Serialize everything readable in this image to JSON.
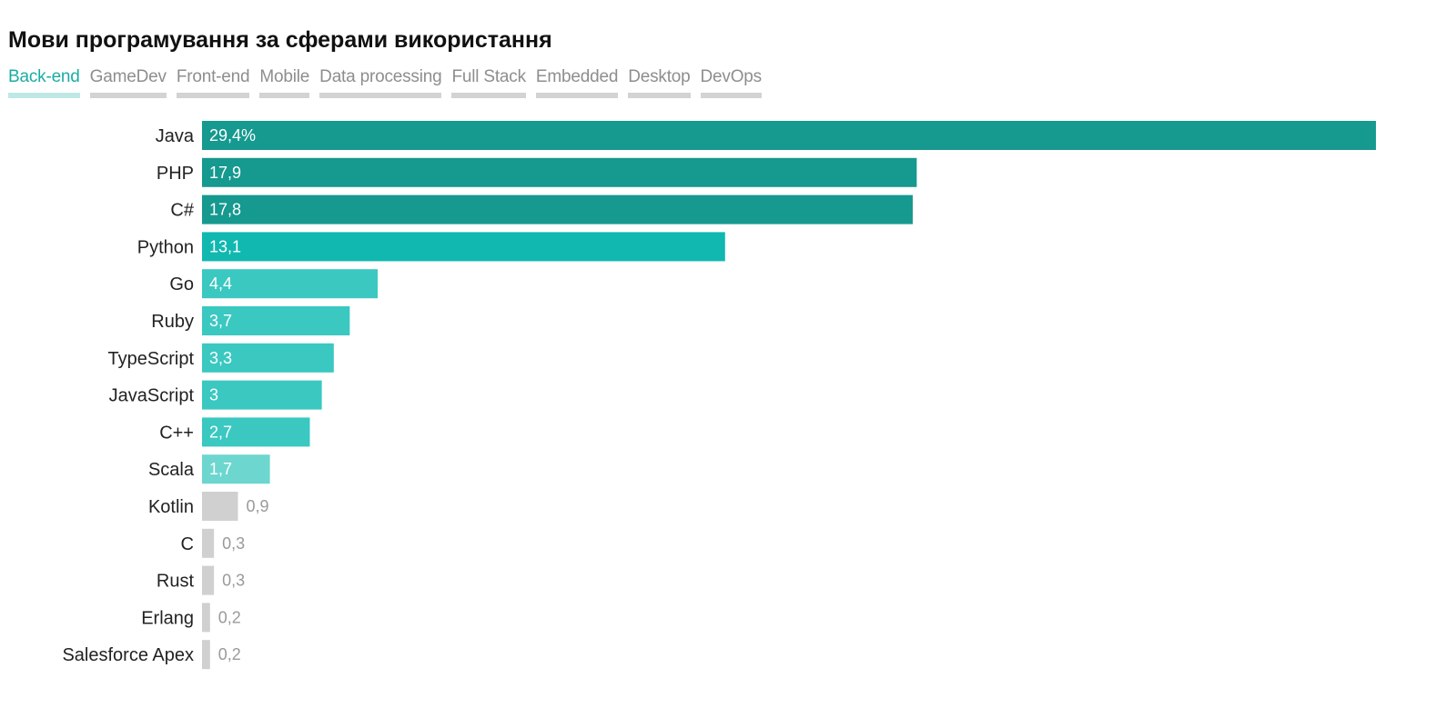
{
  "header": {
    "title": "Мови програмування за сферами використання",
    "tabs": [
      {
        "label": "Back-end",
        "active": true
      },
      {
        "label": "GameDev",
        "active": false
      },
      {
        "label": "Front-end",
        "active": false
      },
      {
        "label": "Mobile",
        "active": false
      },
      {
        "label": "Data processing",
        "active": false
      },
      {
        "label": "Full Stack",
        "active": false
      },
      {
        "label": "Embedded",
        "active": false
      },
      {
        "label": "Desktop",
        "active": false
      },
      {
        "label": "DevOps",
        "active": false
      }
    ]
  },
  "colors": {
    "accent": "#1aada3",
    "tab_inactive": "#8e8e8e",
    "tab_underline": "#d3d3d3",
    "tab_active_underline": "#bfe8e5",
    "bar_top": "#16998f",
    "bar_mid": "#10b8b0",
    "bar_light": "#3ac8c1",
    "bar_pale": "#6dd6cf",
    "bar_grey": "#d0d0d0"
  },
  "chart_data": {
    "type": "bar",
    "orientation": "horizontal",
    "categories": [
      "Java",
      "PHP",
      "C#",
      "Python",
      "Go",
      "Ruby",
      "TypeScript",
      "JavaScript",
      "C++",
      "Scala",
      "Kotlin",
      "C",
      "Rust",
      "Erlang",
      "Salesforce Apex"
    ],
    "values": [
      29.4,
      17.9,
      17.8,
      13.1,
      4.4,
      3.7,
      3.3,
      3,
      2.7,
      1.7,
      0.9,
      0.3,
      0.3,
      0.2,
      0.2
    ],
    "value_labels": [
      "29,4%",
      "17,9",
      "17,8",
      "13,1",
      "4,4",
      "3,7",
      "3,3",
      "3",
      "2,7",
      "1,7",
      "0,9",
      "0,3",
      "0,3",
      "0,2",
      "0,2"
    ],
    "bar_color_keys": [
      "bar_top",
      "bar_top",
      "bar_top",
      "bar_mid",
      "bar_light",
      "bar_light",
      "bar_light",
      "bar_light",
      "bar_light",
      "bar_pale",
      "bar_grey",
      "bar_grey",
      "bar_grey",
      "bar_grey",
      "bar_grey"
    ],
    "label_inside": [
      true,
      true,
      true,
      true,
      true,
      true,
      true,
      true,
      true,
      true,
      false,
      false,
      false,
      false,
      false
    ],
    "xlim": [
      0,
      29.4
    ],
    "grid": false,
    "legend": "none"
  }
}
